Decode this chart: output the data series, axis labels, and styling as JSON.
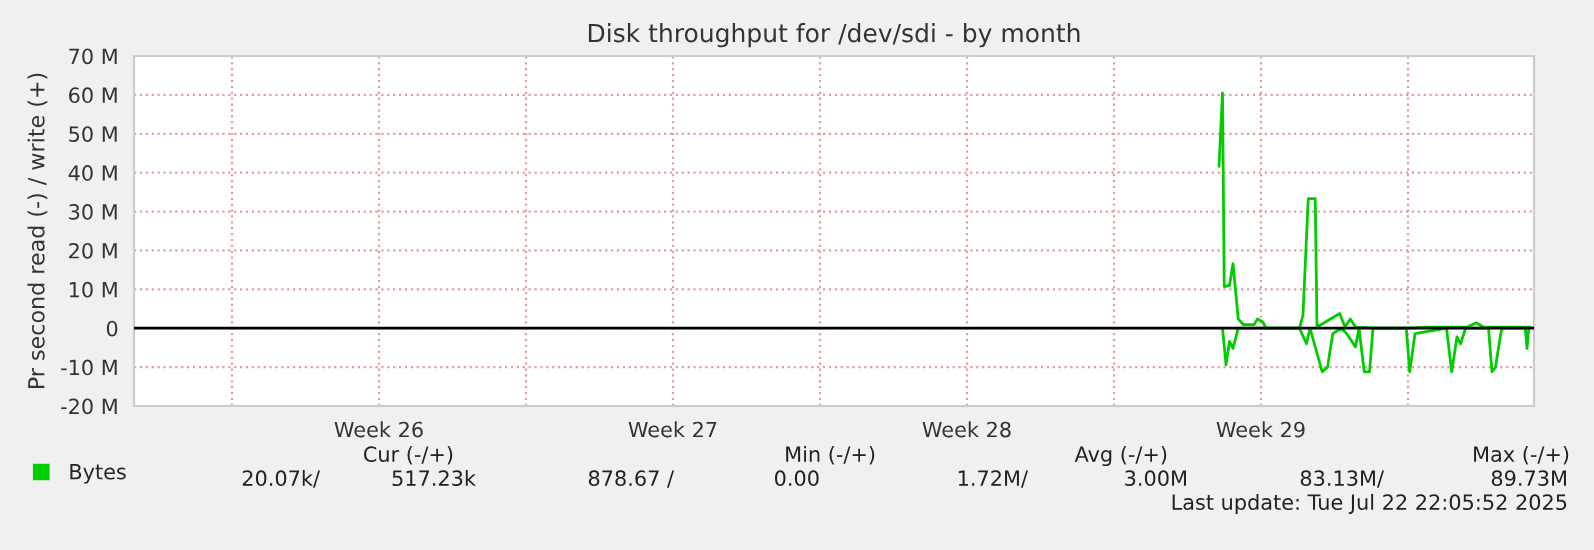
{
  "chart_data": {
    "type": "line",
    "title": "Disk throughput for /dev/sdi - by month",
    "ylabel": "Pr second read (-) / write (+)",
    "xlim": [
      "2025-06-19T16:00",
      "2025-07-23T00:00"
    ],
    "xticks": [
      {
        "value": "2025-06-22",
        "label": null
      },
      {
        "value": "2025-06-25T12:00",
        "label": "Week 26"
      },
      {
        "value": "2025-06-29",
        "label": null
      },
      {
        "value": "2025-07-02T12:00",
        "label": "Week 27"
      },
      {
        "value": "2025-07-06",
        "label": null
      },
      {
        "value": "2025-07-09T12:00",
        "label": "Week 28"
      },
      {
        "value": "2025-07-13",
        "label": null
      },
      {
        "value": "2025-07-16T12:00",
        "label": "Week 29"
      },
      {
        "value": "2025-07-20",
        "label": null
      }
    ],
    "ylim": [
      -20,
      70
    ],
    "yticks": [
      {
        "value": -20,
        "label": "-20 M"
      },
      {
        "value": -10,
        "label": "-10 M"
      },
      0,
      {
        "value": 10,
        "label": "10 M"
      },
      {
        "value": 20,
        "label": "20 M"
      },
      {
        "value": 30,
        "label": "30 M"
      },
      {
        "value": 40,
        "label": "40 M"
      },
      {
        "value": 50,
        "label": "50 M"
      },
      {
        "value": 60,
        "label": "60 M"
      },
      {
        "value": 70,
        "label": "70 M"
      }
    ],
    "grid": true,
    "legend": "bottom left",
    "ref_lines": [
      {
        "axis": "y",
        "value": 0,
        "color": "#000000"
      }
    ],
    "series": [
      {
        "name": "Bytes",
        "color": "#00cc00",
        "x": [
          "2025-07-15T12:00",
          "2025-07-15T14:00",
          "2025-07-15T15:00",
          "2025-07-15T18:00",
          "2025-07-15T20:00",
          "2025-07-15T23:00",
          "2025-07-16T02:00",
          "2025-07-16T08:00",
          "2025-07-16T10:00",
          "2025-07-16T13:00",
          "2025-07-16T15:00",
          "2025-07-17T10:00",
          "2025-07-17T12:00",
          "2025-07-17T15:00",
          "2025-07-17T19:00",
          "2025-07-17T20:00",
          "2025-07-18T09:00",
          "2025-07-18T12:00",
          "2025-07-18T15:00",
          "2025-07-18T18:00",
          "2025-07-19T06:00",
          "2025-07-19T23:00",
          "2025-07-20T11:00",
          "2025-07-21T10:00",
          "2025-07-21T15:00",
          "2025-07-21T19:00",
          "2025-07-22T22:00"
        ],
        "values": [
          41.6,
          60.5,
          10.7,
          11,
          16.6,
          2.4,
          0.9,
          0.9,
          2.4,
          1.6,
          0,
          0,
          3.4,
          33.3,
          33.3,
          0.3,
          3.8,
          0.3,
          2.4,
          0.3,
          0,
          0,
          0.3,
          0.3,
          1.4,
          0.3,
          0.3
        ]
      },
      {
        "color": "#00cc00",
        "x": [
          "2025-07-15T14:00",
          "2025-07-15T16:00",
          "2025-07-15T18:00",
          "2025-07-15T20:00",
          "2025-07-15T23:00",
          "2025-07-17T10:00",
          "2025-07-17T14:00",
          "2025-07-17T16:00",
          "2025-07-17T23:00",
          "2025-07-18T02:00",
          "2025-07-18T05:00",
          "2025-07-18T10:00",
          "2025-07-18T13:00",
          "2025-07-18T18:00",
          "2025-07-18T20:00",
          "2025-07-18T23:00",
          "2025-07-19T02:00",
          "2025-07-19T04:00",
          "2025-07-19T23:00",
          "2025-07-20T01:00",
          "2025-07-20T04:00",
          "2025-07-20T22:00",
          "2025-07-21T01:00",
          "2025-07-21T04:00",
          "2025-07-21T06:00",
          "2025-07-21T09:00",
          "2025-07-21T22:00",
          "2025-07-22T00:00",
          "2025-07-22T02:00",
          "2025-07-22T05:00",
          "2025-07-22T06:00",
          "2025-07-22T19:00",
          "2025-07-22T20:00",
          "2025-07-22T21:00"
        ],
        "values": [
          0,
          -9.4,
          -3.4,
          -5.2,
          0,
          0,
          -4,
          0,
          -11.2,
          -10,
          -1.4,
          0,
          -1.4,
          -4.8,
          0,
          -11.2,
          -11.2,
          0,
          0,
          -11.2,
          -1.4,
          0,
          -11.2,
          -2.2,
          -4,
          0,
          0,
          -11.2,
          -10,
          -1.4,
          0,
          0,
          -5.2,
          0
        ]
      }
    ],
    "annotations": [
      "Cur (-/+)",
      "Min (-/+)",
      "Avg (-/+)",
      "Max (-/+)",
      "20.07k/",
      "517.23k",
      "878.67 /",
      "0.00",
      "1.72M/",
      "3.00M",
      "83.13M/",
      "89.73M",
      "Last update: Tue Jul 22 22:05:52 2025"
    ]
  }
}
